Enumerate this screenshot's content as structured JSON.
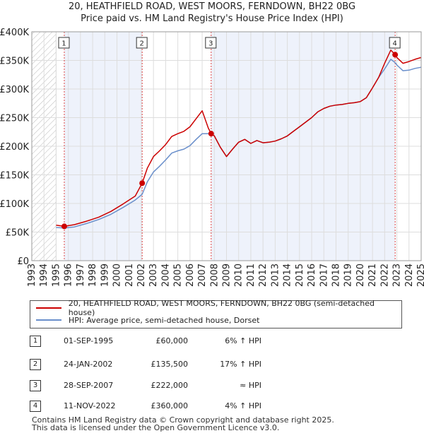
{
  "chart_data": {
    "type": "line",
    "title": "20, HEATHFIELD ROAD, WEST MOORS, FERNDOWN, BH22 0BG",
    "subtitle": "Price paid vs. HM Land Registry's House Price Index (HPI)",
    "xlabel": "",
    "ylabel": "",
    "xlim": [
      1993,
      2025
    ],
    "ylim": [
      0,
      400000
    ],
    "x_ticks": [
      "1993",
      "1994",
      "1995",
      "1996",
      "1997",
      "1998",
      "1999",
      "2000",
      "2001",
      "2002",
      "2003",
      "2004",
      "2005",
      "2006",
      "2007",
      "2008",
      "2009",
      "2010",
      "2011",
      "2012",
      "2013",
      "2014",
      "2015",
      "2016",
      "2017",
      "2018",
      "2019",
      "2020",
      "2021",
      "2022",
      "2023",
      "2024",
      "2025"
    ],
    "y_ticks": [
      {
        "value": 0,
        "label": "£0"
      },
      {
        "value": 50000,
        "label": "£50K"
      },
      {
        "value": 100000,
        "label": "£100K"
      },
      {
        "value": 150000,
        "label": "£150K"
      },
      {
        "value": 200000,
        "label": "£200K"
      },
      {
        "value": 250000,
        "label": "£250K"
      },
      {
        "value": 300000,
        "label": "£300K"
      },
      {
        "value": 350000,
        "label": "£350K"
      },
      {
        "value": 400000,
        "label": "£400K"
      }
    ],
    "hatched_ranges": [
      [
        1993,
        1995.0
      ]
    ],
    "shaded_ranges": [
      [
        1995.67,
        2002.07
      ],
      [
        2007.74,
        2022.86
      ]
    ],
    "series": [
      {
        "name": "20, HEATHFIELD ROAD, WEST MOORS, FERNDOWN, BH22 0BG (semi-detached house)",
        "color": "#cc0000",
        "x": [
          1995.0,
          1995.67,
          1996.5,
          1997.5,
          1998.5,
          1999.5,
          2000.5,
          2001.5,
          2002.07,
          2002.5,
          2003.0,
          2003.5,
          2004.0,
          2004.5,
          2005.0,
          2005.5,
          2006.0,
          2006.5,
          2007.0,
          2007.5,
          2007.74,
          2008.0,
          2008.5,
          2009.0,
          2009.5,
          2010.0,
          2010.5,
          2011.0,
          2011.5,
          2012.0,
          2012.5,
          2013.0,
          2013.5,
          2014.0,
          2014.5,
          2015.0,
          2015.5,
          2016.0,
          2016.5,
          2017.0,
          2017.5,
          2018.0,
          2018.5,
          2019.0,
          2019.5,
          2020.0,
          2020.5,
          2021.0,
          2021.5,
          2022.0,
          2022.5,
          2022.86,
          2023.0,
          2023.5,
          2024.0,
          2024.5,
          2025.0
        ],
        "y": [
          62000,
          60000,
          63000,
          69000,
          76000,
          86000,
          99000,
          113000,
          135500,
          162000,
          182000,
          192000,
          203000,
          217000,
          222000,
          226000,
          234000,
          248000,
          262000,
          232000,
          222000,
          218000,
          198000,
          182000,
          195000,
          207000,
          212000,
          205000,
          210000,
          206000,
          207000,
          209000,
          213000,
          218000,
          226000,
          234000,
          242000,
          250000,
          260000,
          266000,
          270000,
          272000,
          273000,
          275000,
          276000,
          278000,
          285000,
          302000,
          320000,
          345000,
          368000,
          360000,
          355000,
          345000,
          348000,
          352000,
          355000
        ]
      },
      {
        "name": "HPI: Average price, semi-detached house, Dorset",
        "color": "#6a8fcb",
        "x": [
          1995.0,
          1995.67,
          1996.5,
          1997.5,
          1998.5,
          1999.5,
          2000.5,
          2001.5,
          2002.07,
          2002.5,
          2003.0,
          2003.5,
          2004.0,
          2004.5,
          2005.0,
          2005.5,
          2006.0,
          2006.5,
          2007.0,
          2007.5,
          2007.74,
          2008.0,
          2008.5,
          2009.0,
          2009.5,
          2010.0,
          2010.5,
          2011.0,
          2011.5,
          2012.0,
          2012.5,
          2013.0,
          2013.5,
          2014.0,
          2014.5,
          2015.0,
          2015.5,
          2016.0,
          2016.5,
          2017.0,
          2017.5,
          2018.0,
          2018.5,
          2019.0,
          2019.5,
          2020.0,
          2020.5,
          2021.0,
          2021.5,
          2022.0,
          2022.5,
          2022.86,
          2023.0,
          2023.5,
          2024.0,
          2024.5,
          2025.0
        ],
        "y": [
          58000,
          57000,
          59000,
          65000,
          72000,
          81000,
          93000,
          106000,
          116000,
          138000,
          155000,
          165000,
          176000,
          188000,
          192000,
          195000,
          201000,
          212000,
          222000,
          222000,
          222000,
          218000,
          198000,
          182000,
          195000,
          207000,
          212000,
          205000,
          210000,
          206000,
          207000,
          209000,
          213000,
          218000,
          226000,
          234000,
          242000,
          250000,
          260000,
          266000,
          270000,
          272000,
          273000,
          275000,
          276000,
          278000,
          285000,
          302000,
          320000,
          335000,
          352000,
          346000,
          342000,
          332000,
          333000,
          336000,
          338000
        ]
      }
    ],
    "markers": [
      {
        "label": "1",
        "x": 1995.67,
        "y": 60000
      },
      {
        "label": "2",
        "x": 2002.07,
        "y": 135500
      },
      {
        "label": "3",
        "x": 2007.74,
        "y": 222000
      },
      {
        "label": "4",
        "x": 2022.86,
        "y": 360000
      }
    ]
  },
  "legend": {
    "entries": [
      {
        "label": "20, HEATHFIELD ROAD, WEST MOORS, FERNDOWN, BH22 0BG (semi-detached house)",
        "color": "#cc0000"
      },
      {
        "label": "HPI: Average price, semi-detached house, Dorset",
        "color": "#6a8fcb"
      }
    ]
  },
  "sales": [
    {
      "num": "1",
      "date": "01-SEP-1995",
      "price": "£60,000",
      "hpi": "6% ↑ HPI"
    },
    {
      "num": "2",
      "date": "24-JAN-2002",
      "price": "£135,500",
      "hpi": "17% ↑ HPI"
    },
    {
      "num": "3",
      "date": "28-SEP-2007",
      "price": "£222,000",
      "hpi": "≈ HPI"
    },
    {
      "num": "4",
      "date": "11-NOV-2022",
      "price": "£360,000",
      "hpi": "4% ↑ HPI"
    }
  ],
  "footer": {
    "line1": "Contains HM Land Registry data © Crown copyright and database right 2025.",
    "line2": "This data is licensed under the Open Government Licence v3.0."
  }
}
